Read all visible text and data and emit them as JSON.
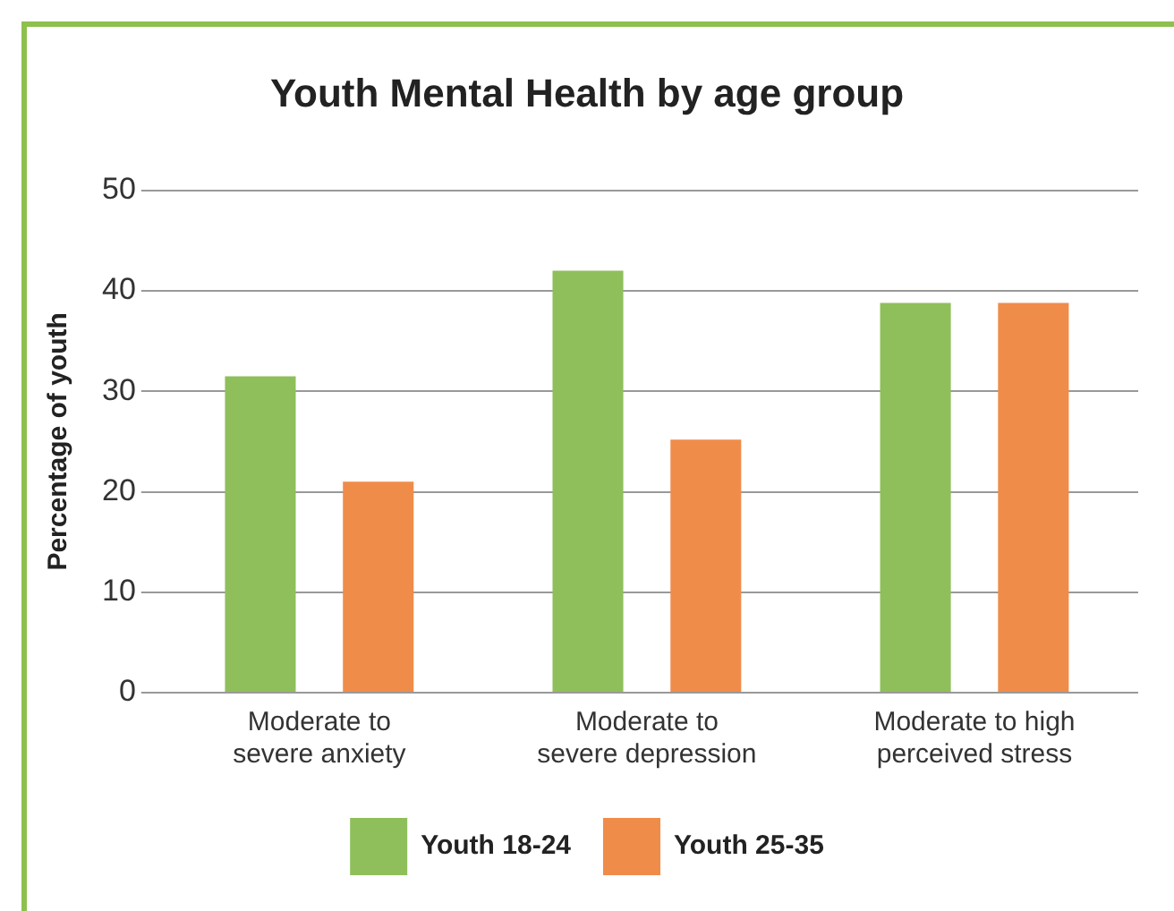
{
  "chart_data": {
    "type": "bar",
    "title": "Youth Mental Health by age group",
    "ylabel": "Percentage of youth",
    "categories": [
      "Moderate to\nsevere anxiety",
      "Moderate to\nsevere depression",
      "Moderate to high\nperceived stress"
    ],
    "series": [
      {
        "name": "Youth 18-24",
        "color": "#8fbf5a",
        "values": [
          31.5,
          42,
          38.8
        ]
      },
      {
        "name": "Youth 25-35",
        "color": "#f08c4a",
        "values": [
          21,
          25.2,
          38.8
        ]
      }
    ],
    "ylim": [
      0,
      50
    ],
    "yticks": [
      0,
      10,
      20,
      30,
      40,
      50
    ],
    "grid": "y",
    "legend": "bottom"
  }
}
